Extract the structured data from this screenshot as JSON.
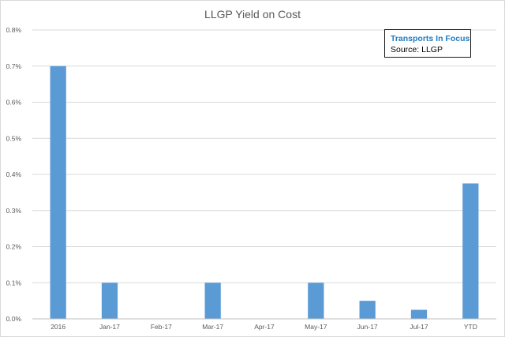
{
  "chart_data": {
    "type": "bar",
    "title": "LLGP Yield on Cost",
    "categories": [
      "2016",
      "Jan-17",
      "Feb-17",
      "Mar-17",
      "Apr-17",
      "May-17",
      "Jun-17",
      "Jul-17",
      "YTD"
    ],
    "values": [
      0.7,
      0.1,
      0,
      0.1,
      0,
      0.1,
      0.05,
      0.025,
      0.375
    ],
    "yticks": [
      "0.0%",
      "0.1%",
      "0.2%",
      "0.3%",
      "0.4%",
      "0.5%",
      "0.6%",
      "0.7%",
      "0.8%"
    ],
    "ylim": [
      0,
      0.8
    ],
    "unit": "%",
    "grid": true,
    "bar_color": "#5b9bd5",
    "legend_placement": "top-right"
  },
  "legend_box": {
    "brand": "Transports In Focus",
    "source": "Source: LLGP",
    "brand_color": "#1f7bc1"
  }
}
